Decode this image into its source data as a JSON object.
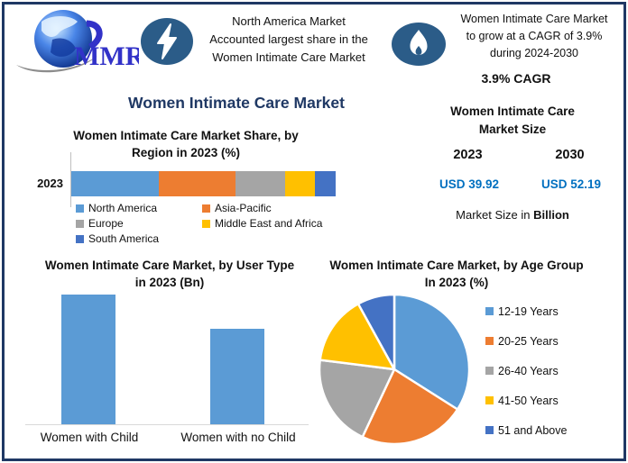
{
  "brand": {
    "logo_text": "MMR"
  },
  "highlights": [
    {
      "icon": "lightning-icon",
      "lines": [
        "North America Market",
        "Accounted largest share in the",
        "Women Intimate Care Market"
      ]
    },
    {
      "icon": "flame-icon",
      "lines": [
        "Women Intimate Care Market",
        "to grow at a CAGR of 3.9%",
        "during 2024-2030"
      ],
      "badge": "3.9% CAGR"
    }
  ],
  "main_title": "Women Intimate Care Market",
  "market_size": {
    "title_lines": [
      "Women Intimate Care",
      "Market Size"
    ],
    "years": [
      "2023",
      "2030"
    ],
    "values": [
      "USD 39.92",
      "USD 52.19"
    ],
    "note_prefix": "Market Size in ",
    "note_bold": "Billion"
  },
  "colors": {
    "accent_navy": "#1F3864",
    "value_blue": "#0070C0",
    "icon_bg": "#2B5C88",
    "axis_gray": "#BFBFBF",
    "baseline_gray": "#D9D9D9"
  },
  "chart_data": [
    {
      "id": "region-share",
      "type": "bar",
      "variant": "stacked-horizontal",
      "title": "Women Intimate Care Market Share, by Region in 2023 (%)",
      "category": "2023",
      "unit": "%",
      "series": [
        {
          "name": "North America",
          "value": 33,
          "color": "#5B9BD5"
        },
        {
          "name": "Asia-Pacific",
          "value": 29,
          "color": "#ED7D31"
        },
        {
          "name": "Europe",
          "value": 19,
          "color": "#A5A5A5"
        },
        {
          "name": "Middle East and Africa",
          "value": 11,
          "color": "#FFC000"
        },
        {
          "name": "South America",
          "value": 8,
          "color": "#4472C4"
        }
      ],
      "legend_position": "bottom"
    },
    {
      "id": "user-type",
      "type": "bar",
      "title": "Women Intimate Care Market, by User Type in 2023 (Bn)",
      "categories": [
        "Women with Child",
        "Women with no Child"
      ],
      "values": [
        23,
        17
      ],
      "unit": "Bn",
      "ylim": [
        0,
        23
      ],
      "color": "#5B9BD5",
      "grid": false
    },
    {
      "id": "age-group",
      "type": "pie",
      "title": "Women Intimate Care Market, by Age Group In 2023 (%)",
      "labels": [
        "12-19 Years",
        "20-25 Years",
        "26-40 Years",
        "41-50 Years",
        "51 and Above"
      ],
      "values": [
        34,
        23,
        20,
        15,
        8
      ],
      "colors": [
        "#5B9BD5",
        "#ED7D31",
        "#A5A5A5",
        "#FFC000",
        "#4472C4"
      ],
      "start_angle": 0,
      "direction": "clockwise",
      "legend_position": "right"
    }
  ]
}
